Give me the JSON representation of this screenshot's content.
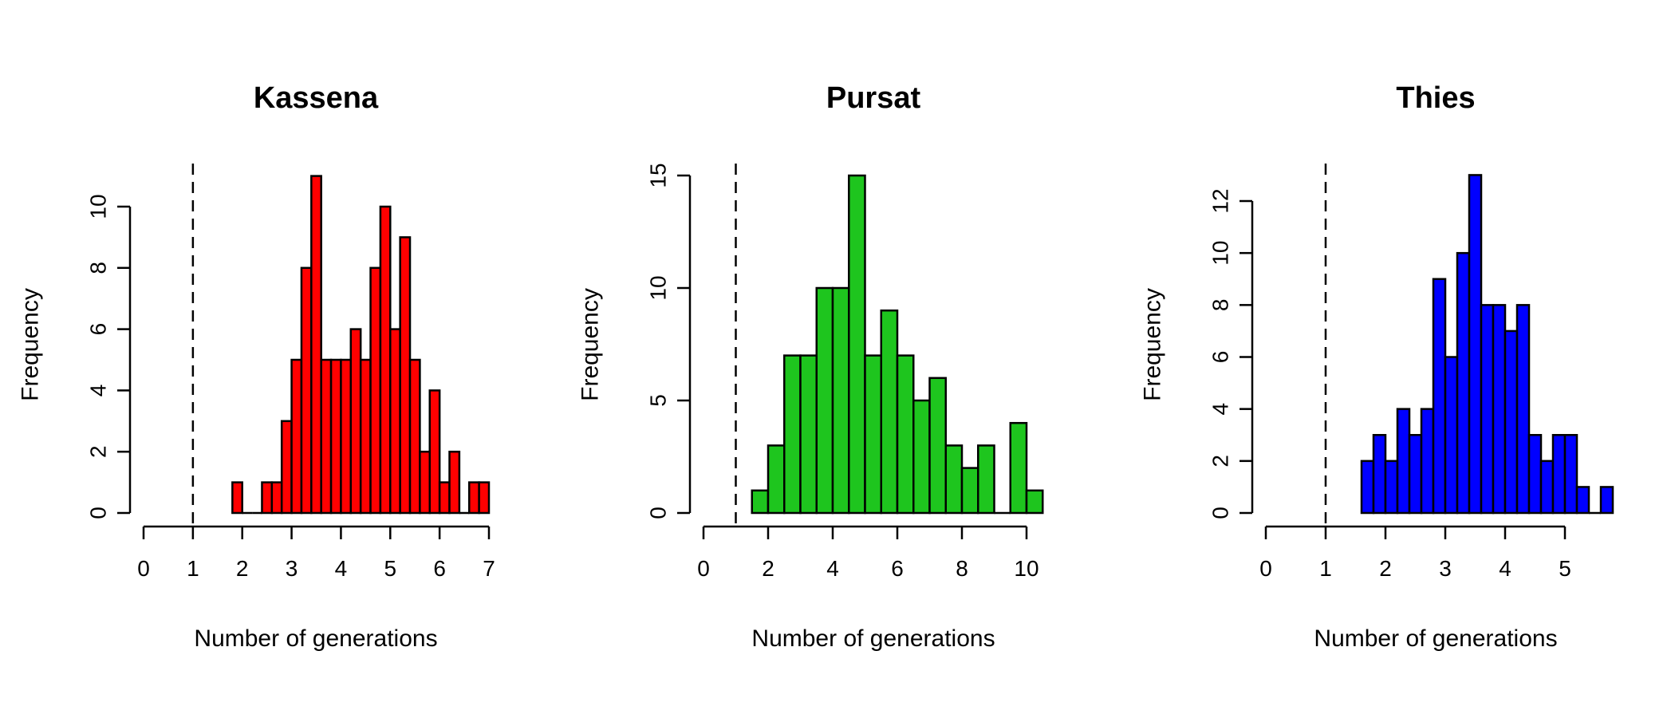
{
  "chart_data": [
    {
      "type": "bar",
      "title": "Kassena",
      "xlabel": "Number of generations",
      "ylabel": "Frequency",
      "color": "#ff0000",
      "bin_width": 0.2,
      "bin_start": 1.8,
      "values": [
        1,
        0,
        0,
        1,
        1,
        3,
        5,
        8,
        11,
        5,
        5,
        5,
        6,
        5,
        8,
        10,
        6,
        9,
        5,
        2,
        4,
        1,
        2,
        0,
        1,
        1
      ],
      "xlim": [
        0,
        7
      ],
      "ylim": [
        0,
        11
      ],
      "xticks": [
        0,
        1,
        2,
        3,
        4,
        5,
        6,
        7
      ],
      "yticks": [
        0,
        2,
        4,
        6,
        8,
        10
      ],
      "reference_line_x": 1
    },
    {
      "type": "bar",
      "title": "Pursat",
      "xlabel": "Number of generations",
      "ylabel": "Frequency",
      "color": "#1ec51e",
      "bin_width": 0.5,
      "bin_start": 1.5,
      "values": [
        1,
        3,
        7,
        7,
        10,
        10,
        15,
        7,
        9,
        7,
        5,
        6,
        3,
        2,
        3,
        0,
        4,
        1
      ],
      "xlim": [
        0,
        10
      ],
      "ylim": [
        0,
        15
      ],
      "xticks": [
        0,
        2,
        4,
        6,
        8,
        10
      ],
      "yticks": [
        0,
        5,
        10,
        15
      ],
      "reference_line_x": 1
    },
    {
      "type": "bar",
      "title": "Thies",
      "xlabel": "Number of generations",
      "ylabel": "Frequency",
      "color": "#0000ff",
      "bin_width": 0.2,
      "bin_start": 1.6,
      "values": [
        2,
        3,
        2,
        4,
        3,
        4,
        9,
        6,
        10,
        13,
        8,
        8,
        7,
        8,
        3,
        2,
        3,
        3,
        1,
        0,
        1
      ],
      "xlim": [
        0,
        5
      ],
      "ylim": [
        0,
        13
      ],
      "xticks": [
        0,
        1,
        2,
        3,
        4,
        5
      ],
      "yticks": [
        0,
        2,
        4,
        6,
        8,
        10,
        12
      ],
      "reference_line_x": 1
    }
  ]
}
